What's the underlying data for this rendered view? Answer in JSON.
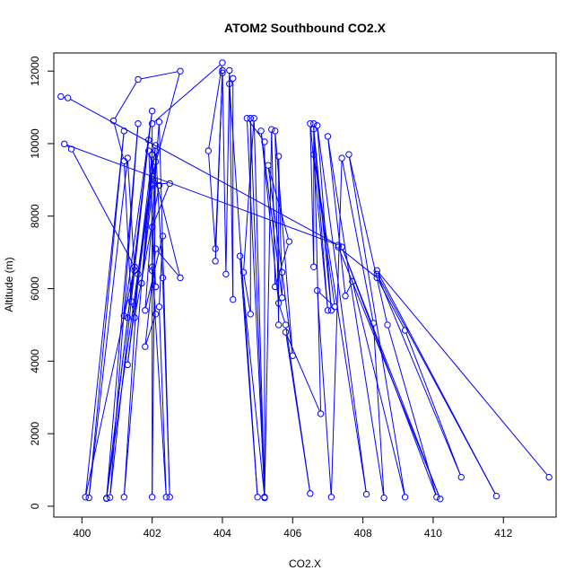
{
  "chart_data": {
    "type": "line",
    "title": "ATOM2 Southbound CO2.X",
    "xlabel": "CO2.X",
    "ylabel": "Altitude (m)",
    "xlim": [
      399.2,
      413.5
    ],
    "ylim": [
      -300,
      12500
    ],
    "x_ticks": [
      400,
      402,
      404,
      406,
      408,
      410,
      412
    ],
    "y_ticks": [
      0,
      2000,
      4000,
      6000,
      8000,
      10000,
      12000
    ],
    "grid": false,
    "legend": "none",
    "series_color": "#0000ff",
    "series": [
      {
        "values": [
          [
            399.4,
            11300
          ],
          [
            399.6,
            11260
          ],
          [
            407.3,
            7200
          ],
          [
            399.5,
            9990
          ],
          [
            399.7,
            9850
          ],
          [
            401.5,
            6600
          ],
          [
            400.1,
            250
          ],
          [
            401.2,
            10350
          ],
          [
            400.2,
            230
          ],
          [
            401.3,
            9600
          ],
          [
            401.5,
            6500
          ],
          [
            401.3,
            5200
          ],
          [
            401.2,
            5250
          ],
          [
            402.0,
            10900
          ],
          [
            400.7,
            210
          ],
          [
            401.9,
            10100
          ],
          [
            400.8,
            240
          ],
          [
            401.6,
            10550
          ],
          [
            400.7,
            220
          ],
          [
            402.1,
            9950
          ],
          [
            401.3,
            3900
          ],
          [
            402.0,
            9700
          ],
          [
            401.2,
            250
          ],
          [
            401.6,
            6400
          ],
          [
            402.0,
            8900
          ],
          [
            402.5,
            8900
          ],
          [
            402.0,
            7700
          ],
          [
            402.0,
            250
          ],
          [
            402.1,
            9800
          ],
          [
            402.3,
            6300
          ],
          [
            402.5,
            250
          ],
          [
            402.2,
            10600
          ],
          [
            401.8,
            5400
          ],
          [
            402.3,
            7450
          ],
          [
            402.2,
            5500
          ],
          [
            402.4,
            250
          ],
          [
            402.0,
            6600
          ],
          [
            402.1,
            6050
          ],
          [
            401.9,
            9800
          ],
          [
            402.8,
            6300
          ],
          [
            402.1,
            7100
          ],
          [
            401.8,
            4400
          ],
          [
            402.1,
            5300
          ],
          [
            402.0,
            6500
          ],
          [
            402.1,
            9500
          ],
          [
            401.7,
            6150
          ],
          [
            402.0,
            9100
          ],
          [
            402.8,
            12000
          ],
          [
            401.6,
            11770
          ],
          [
            400.9,
            10630
          ],
          [
            401.2,
            9520
          ],
          [
            401.4,
            5650
          ],
          [
            401.5,
            5200
          ],
          [
            402.2,
            8850
          ],
          [
            402.0,
            8850
          ],
          [
            402.0,
            10550
          ],
          [
            404.0,
            12230
          ],
          [
            403.6,
            9800
          ],
          [
            403.8,
            7100
          ],
          [
            404.0,
            11950
          ],
          [
            403.8,
            6760
          ],
          [
            404.0,
            12020
          ],
          [
            404.1,
            6400
          ],
          [
            404.2,
            12020
          ],
          [
            404.3,
            5700
          ],
          [
            404.3,
            11800
          ],
          [
            404.2,
            11650
          ],
          [
            405.0,
            250
          ],
          [
            404.5,
            6900
          ],
          [
            405.2,
            250
          ],
          [
            404.7,
            10700
          ],
          [
            405.2,
            10050
          ],
          [
            405.2,
            230
          ],
          [
            404.8,
            10700
          ],
          [
            404.8,
            5300
          ],
          [
            404.6,
            6450
          ],
          [
            404.9,
            10700
          ],
          [
            405.2,
            250
          ],
          [
            405.4,
            10390
          ],
          [
            405.5,
            6050
          ],
          [
            405.9,
            7300
          ],
          [
            405.3,
            9400
          ],
          [
            405.7,
            6450
          ],
          [
            406.0,
            4150
          ],
          [
            405.5,
            10350
          ],
          [
            405.6,
            5000
          ],
          [
            405.6,
            9650
          ],
          [
            405.7,
            5750
          ],
          [
            405.1,
            10350
          ],
          [
            405.6,
            5600
          ],
          [
            405.8,
            5000
          ],
          [
            406.5,
            350
          ],
          [
            405.8,
            4800
          ],
          [
            406.8,
            2550
          ],
          [
            406.6,
            10550
          ],
          [
            406.6,
            6600
          ],
          [
            406.5,
            10550
          ],
          [
            407.0,
            5400
          ],
          [
            406.6,
            10400
          ],
          [
            407.1,
            5400
          ],
          [
            406.7,
            10500
          ],
          [
            408.1,
            330
          ],
          [
            406.6,
            9700
          ],
          [
            407.2,
            5500
          ],
          [
            406.7,
            5950
          ],
          [
            407.1,
            250
          ],
          [
            407.4,
            9600
          ],
          [
            408.3,
            5050
          ],
          [
            408.6,
            230
          ],
          [
            407.0,
            10200
          ],
          [
            407.5,
            5800
          ],
          [
            407.7,
            6200
          ],
          [
            409.2,
            250
          ],
          [
            407.6,
            9700
          ],
          [
            408.7,
            5000
          ],
          [
            410.1,
            250
          ],
          [
            407.4,
            7150
          ],
          [
            410.2,
            200
          ],
          [
            407.3,
            7150
          ],
          [
            408.4,
            6300
          ],
          [
            409.2,
            4850
          ],
          [
            410.8,
            800
          ],
          [
            408.4,
            6400
          ],
          [
            411.8,
            280
          ],
          [
            408.4,
            6500
          ],
          [
            413.3,
            800
          ]
        ]
      }
    ]
  }
}
